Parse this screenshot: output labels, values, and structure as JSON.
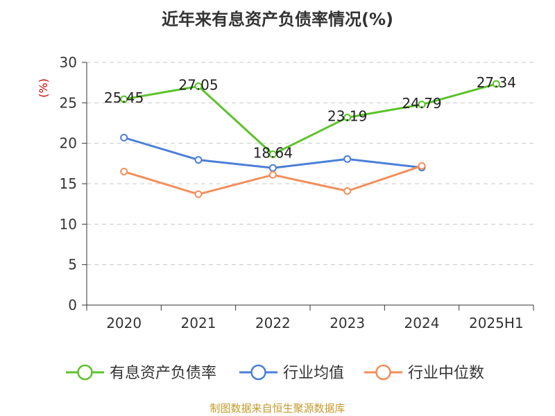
{
  "chart_data": {
    "type": "line",
    "title": "近年来有息资产负债率情况(%)",
    "ylabel": "(%)",
    "xlabel": "",
    "categories": [
      "2020",
      "2021",
      "2022",
      "2023",
      "2024",
      "2025H1"
    ],
    "ylim": [
      0,
      30
    ],
    "yticks": [
      0,
      5,
      10,
      15,
      20,
      25,
      30
    ],
    "grid": true,
    "legend_position": "bottom",
    "series": [
      {
        "name": "有息资产负债率",
        "color": "#5cc22a",
        "values": [
          25.45,
          27.05,
          18.64,
          23.19,
          24.79,
          27.34
        ],
        "labels": [
          "25.45",
          "27.05",
          "18.64",
          "23.19",
          "24.79",
          "27.34"
        ]
      },
      {
        "name": "行业均值",
        "color": "#4a7fd8",
        "values": [
          20.7,
          17.95,
          16.95,
          18.05,
          17.0,
          null
        ]
      },
      {
        "name": "行业中位数",
        "color": "#f38e5a",
        "values": [
          16.5,
          13.7,
          16.1,
          14.1,
          17.2,
          null
        ]
      }
    ]
  },
  "footer": "制图数据来自恒生聚源数据库"
}
